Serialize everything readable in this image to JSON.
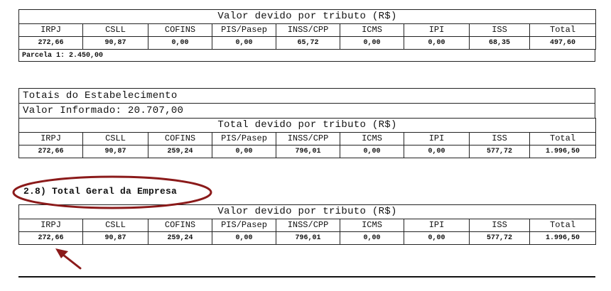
{
  "columns": [
    "IRPJ",
    "CSLL",
    "COFINS",
    "PIS/Pasep",
    "INSS/CPP",
    "ICMS",
    "IPI",
    "ISS",
    "Total"
  ],
  "block1": {
    "caption": "Valor devido por tributo (R$)",
    "values": [
      "272,66",
      "90,87",
      "0,00",
      "0,00",
      "65,72",
      "0,00",
      "0,00",
      "68,35",
      "497,60"
    ],
    "note": "Parcela 1: 2.450,00"
  },
  "block2": {
    "title": "Totais do Estabelecimento",
    "informed": "Valor Informado: 20.707,00",
    "caption": "Total devido por tributo (R$)",
    "values": [
      "272,66",
      "90,87",
      "259,24",
      "0,00",
      "796,01",
      "0,00",
      "0,00",
      "577,72",
      "1.996,50"
    ]
  },
  "block3": {
    "section_title": "2.8) Total Geral da Empresa",
    "caption": "Valor devido por tributo (R$)",
    "values": [
      "272,66",
      "90,87",
      "259,24",
      "0,00",
      "796,01",
      "0,00",
      "0,00",
      "577,72",
      "1.996,50"
    ]
  },
  "annotations": {
    "highlight_color": "#8b1a1a",
    "ellipse_target": "section-title",
    "arrow_target": "IRPJ value"
  }
}
